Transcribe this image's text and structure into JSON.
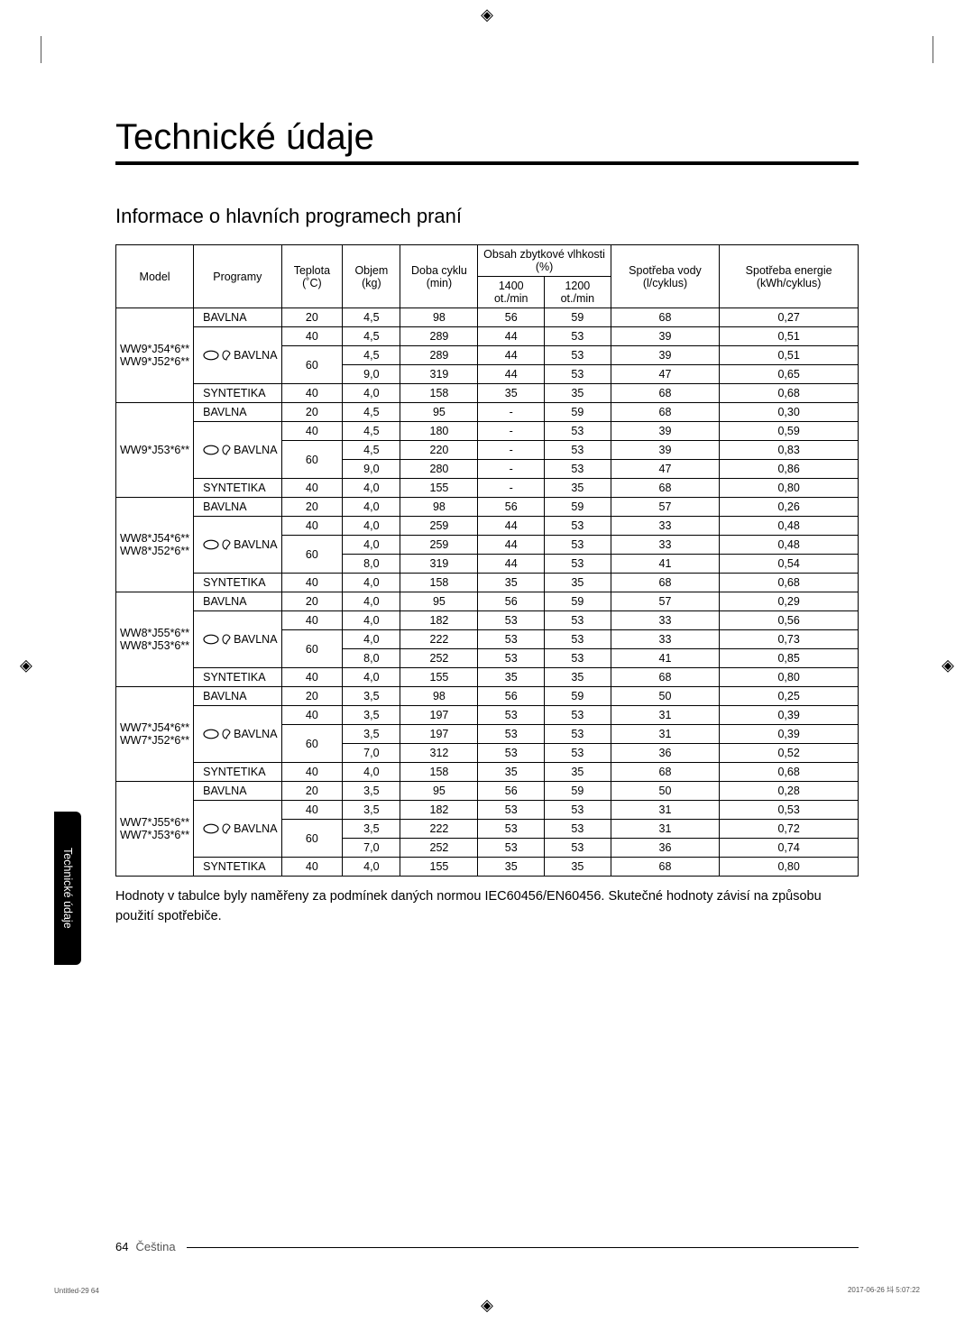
{
  "colors": {
    "text": "#000000",
    "border": "#000000",
    "background": "#ffffff",
    "tab_bg": "#000000",
    "tab_text": "#ffffff",
    "muted": "#555555"
  },
  "title": "Technické údaje",
  "subtitle": "Informace o hlavních programech praní",
  "side_tab": "Technické údaje",
  "footnote": "Hodnoty v tabulce byly naměřeny za podmínek daných normou IEC60456/EN60456. Skutečné hodnoty závisí na způsobu použití spotřebiče.",
  "page_number": "64",
  "language": "Čeština",
  "meta_left": "Untitled-29   64",
  "meta_right": "2017-06-26   㘰 5:07:22",
  "headers": {
    "model": "Model",
    "programs": "Programy",
    "temp": "Teplota (˚C)",
    "volume": "Objem (kg)",
    "duration": "Doba cyklu (min)",
    "humidity": "Obsah zbytkové vlhkosti (%)",
    "hum1": "1400 ot./min",
    "hum2": "1200 ot./min",
    "water": "Spotřeba vody (l/cyklus)",
    "energy": "Spotřeba energie (kWh/cyklus)"
  },
  "program_names": {
    "bavlna": "BAVLNA",
    "eco_bavlna": "BAVLNA",
    "syntetika": "SYNTETIKA"
  },
  "groups": [
    {
      "model_lines": [
        "WW9*J54*6**",
        "WW9*J52*6**"
      ],
      "rows": [
        {
          "prog": "bavlna",
          "temp": "20",
          "vol": "4,5",
          "dur": "98",
          "h1": "56",
          "h2": "59",
          "water": "68",
          "energy": "0,27"
        },
        {
          "prog": "eco_bavlna",
          "rowspan": 3,
          "temp": "40",
          "vol": "4,5",
          "dur": "289",
          "h1": "44",
          "h2": "53",
          "water": "39",
          "energy": "0,51"
        },
        {
          "temp": "60",
          "temp_rowspan": 2,
          "vol": "4,5",
          "dur": "289",
          "h1": "44",
          "h2": "53",
          "water": "39",
          "energy": "0,51"
        },
        {
          "vol": "9,0",
          "dur": "319",
          "h1": "44",
          "h2": "53",
          "water": "47",
          "energy": "0,65"
        },
        {
          "prog": "syntetika",
          "temp": "40",
          "vol": "4,0",
          "dur": "158",
          "h1": "35",
          "h2": "35",
          "water": "68",
          "energy": "0,68"
        }
      ]
    },
    {
      "model_lines": [
        "WW9*J53*6**"
      ],
      "rows": [
        {
          "prog": "bavlna",
          "temp": "20",
          "vol": "4,5",
          "dur": "95",
          "h1": "-",
          "h2": "59",
          "water": "68",
          "energy": "0,30"
        },
        {
          "prog": "eco_bavlna",
          "rowspan": 3,
          "temp": "40",
          "vol": "4,5",
          "dur": "180",
          "h1": "-",
          "h2": "53",
          "water": "39",
          "energy": "0,59"
        },
        {
          "temp": "60",
          "temp_rowspan": 2,
          "vol": "4,5",
          "dur": "220",
          "h1": "-",
          "h2": "53",
          "water": "39",
          "energy": "0,83"
        },
        {
          "vol": "9,0",
          "dur": "280",
          "h1": "-",
          "h2": "53",
          "water": "47",
          "energy": "0,86"
        },
        {
          "prog": "syntetika",
          "temp": "40",
          "vol": "4,0",
          "dur": "155",
          "h1": "-",
          "h2": "35",
          "water": "68",
          "energy": "0,80"
        }
      ]
    },
    {
      "model_lines": [
        "WW8*J54*6**",
        "WW8*J52*6**"
      ],
      "rows": [
        {
          "prog": "bavlna",
          "temp": "20",
          "vol": "4,0",
          "dur": "98",
          "h1": "56",
          "h2": "59",
          "water": "57",
          "energy": "0,26"
        },
        {
          "prog": "eco_bavlna",
          "rowspan": 3,
          "temp": "40",
          "vol": "4,0",
          "dur": "259",
          "h1": "44",
          "h2": "53",
          "water": "33",
          "energy": "0,48"
        },
        {
          "temp": "60",
          "temp_rowspan": 2,
          "vol": "4,0",
          "dur": "259",
          "h1": "44",
          "h2": "53",
          "water": "33",
          "energy": "0,48"
        },
        {
          "vol": "8,0",
          "dur": "319",
          "h1": "44",
          "h2": "53",
          "water": "41",
          "energy": "0,54"
        },
        {
          "prog": "syntetika",
          "temp": "40",
          "vol": "4,0",
          "dur": "158",
          "h1": "35",
          "h2": "35",
          "water": "68",
          "energy": "0,68"
        }
      ]
    },
    {
      "model_lines": [
        "WW8*J55*6**",
        "WW8*J53*6**"
      ],
      "rows": [
        {
          "prog": "bavlna",
          "temp": "20",
          "vol": "4,0",
          "dur": "95",
          "h1": "56",
          "h2": "59",
          "water": "57",
          "energy": "0,29"
        },
        {
          "prog": "eco_bavlna",
          "rowspan": 3,
          "temp": "40",
          "vol": "4,0",
          "dur": "182",
          "h1": "53",
          "h2": "53",
          "water": "33",
          "energy": "0,56"
        },
        {
          "temp": "60",
          "temp_rowspan": 2,
          "vol": "4,0",
          "dur": "222",
          "h1": "53",
          "h2": "53",
          "water": "33",
          "energy": "0,73"
        },
        {
          "vol": "8,0",
          "dur": "252",
          "h1": "53",
          "h2": "53",
          "water": "41",
          "energy": "0,85"
        },
        {
          "prog": "syntetika",
          "temp": "40",
          "vol": "4,0",
          "dur": "155",
          "h1": "35",
          "h2": "35",
          "water": "68",
          "energy": "0,80"
        }
      ]
    },
    {
      "model_lines": [
        "WW7*J54*6**",
        "WW7*J52*6**"
      ],
      "rows": [
        {
          "prog": "bavlna",
          "temp": "20",
          "vol": "3,5",
          "dur": "98",
          "h1": "56",
          "h2": "59",
          "water": "50",
          "energy": "0,25"
        },
        {
          "prog": "eco_bavlna",
          "rowspan": 3,
          "temp": "40",
          "vol": "3,5",
          "dur": "197",
          "h1": "53",
          "h2": "53",
          "water": "31",
          "energy": "0,39"
        },
        {
          "temp": "60",
          "temp_rowspan": 2,
          "vol": "3,5",
          "dur": "197",
          "h1": "53",
          "h2": "53",
          "water": "31",
          "energy": "0,39"
        },
        {
          "vol": "7,0",
          "dur": "312",
          "h1": "53",
          "h2": "53",
          "water": "36",
          "energy": "0,52"
        },
        {
          "prog": "syntetika",
          "temp": "40",
          "vol": "4,0",
          "dur": "158",
          "h1": "35",
          "h2": "35",
          "water": "68",
          "energy": "0,68"
        }
      ]
    },
    {
      "model_lines": [
        "WW7*J55*6**",
        "WW7*J53*6**"
      ],
      "rows": [
        {
          "prog": "bavlna",
          "temp": "20",
          "vol": "3,5",
          "dur": "95",
          "h1": "56",
          "h2": "59",
          "water": "50",
          "energy": "0,28"
        },
        {
          "prog": "eco_bavlna",
          "rowspan": 3,
          "temp": "40",
          "vol": "3,5",
          "dur": "182",
          "h1": "53",
          "h2": "53",
          "water": "31",
          "energy": "0,53"
        },
        {
          "temp": "60",
          "temp_rowspan": 2,
          "vol": "3,5",
          "dur": "222",
          "h1": "53",
          "h2": "53",
          "water": "31",
          "energy": "0,72"
        },
        {
          "vol": "7,0",
          "dur": "252",
          "h1": "53",
          "h2": "53",
          "water": "36",
          "energy": "0,74"
        },
        {
          "prog": "syntetika",
          "temp": "40",
          "vol": "4,0",
          "dur": "155",
          "h1": "35",
          "h2": "35",
          "water": "68",
          "energy": "0,80"
        }
      ]
    }
  ]
}
